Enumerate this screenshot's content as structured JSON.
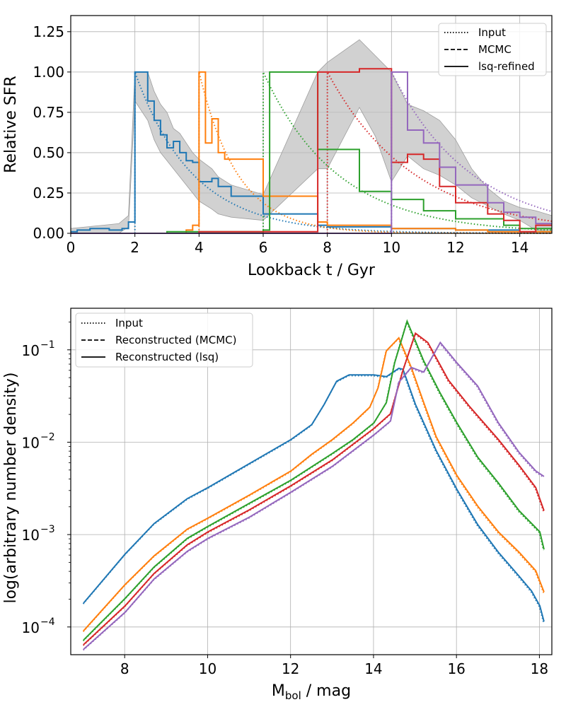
{
  "colors": [
    "#1f77b4",
    "#ff7f0e",
    "#2ca02c",
    "#d62728",
    "#9467bd"
  ],
  "chart_data": [
    {
      "type": "line",
      "xlabel": "Lookback t / Gyr",
      "ylabel": "Relative SFR",
      "xlim": [
        0,
        15
      ],
      "ylim": [
        0,
        1.35
      ],
      "xticks": [
        "0",
        "2",
        "4",
        "6",
        "8",
        "10",
        "12",
        "14"
      ],
      "yticks": [
        "0.00",
        "0.25",
        "0.50",
        "0.75",
        "1.00",
        "1.25"
      ],
      "grid": true,
      "legend": {
        "placement": "top-right",
        "entries": [
          {
            "label": "Input",
            "style": "dotted"
          },
          {
            "label": "MCMC",
            "style": "dashed"
          },
          {
            "label": "lsq-refined",
            "style": "solid"
          }
        ]
      },
      "input_series": [
        {
          "start": 2,
          "tau": 1.8
        },
        {
          "start": 4,
          "tau": 1.2
        },
        {
          "start": 6,
          "tau": 2.3
        },
        {
          "start": 8,
          "tau": 2.7
        },
        {
          "start": 10,
          "tau": 2.5
        }
      ],
      "uncertainty_band": [
        [
          0,
          0.0,
          0.03
        ],
        [
          0.5,
          0.0,
          0.04
        ],
        [
          1.0,
          0.0,
          0.05
        ],
        [
          1.5,
          0.0,
          0.06
        ],
        [
          1.8,
          0.04,
          0.11
        ],
        [
          2.0,
          0.82,
          1.0
        ],
        [
          2.4,
          0.7,
          1.0
        ],
        [
          2.6,
          0.58,
          0.88
        ],
        [
          2.8,
          0.5,
          0.8
        ],
        [
          3.0,
          0.45,
          0.75
        ],
        [
          3.2,
          0.4,
          0.65
        ],
        [
          3.4,
          0.35,
          0.62
        ],
        [
          3.6,
          0.3,
          0.56
        ],
        [
          3.8,
          0.25,
          0.5
        ],
        [
          4.0,
          0.2,
          0.46
        ],
        [
          4.4,
          0.15,
          0.4
        ],
        [
          4.6,
          0.12,
          0.35
        ],
        [
          5.0,
          0.1,
          0.3
        ],
        [
          6.0,
          0.08,
          0.24
        ],
        [
          7.7,
          0.4,
          1.0
        ],
        [
          8.0,
          0.4,
          1.06
        ],
        [
          9.0,
          0.78,
          1.2
        ],
        [
          9.5,
          0.6,
          1.1
        ],
        [
          10.0,
          0.32,
          1.0
        ],
        [
          10.5,
          0.48,
          0.8
        ],
        [
          11.0,
          0.4,
          0.76
        ],
        [
          11.5,
          0.36,
          0.7
        ],
        [
          12.0,
          0.3,
          0.58
        ],
        [
          12.5,
          0.22,
          0.4
        ],
        [
          13.0,
          0.17,
          0.28
        ],
        [
          13.5,
          0.12,
          0.2
        ],
        [
          14.0,
          0.08,
          0.16
        ],
        [
          14.5,
          0.02,
          0.14
        ],
        [
          15.0,
          0.01,
          0.11
        ]
      ],
      "step_series": [
        {
          "edges": [
            0,
            0.2,
            0.4,
            0.6,
            0.8,
            1.0,
            1.2,
            1.4,
            1.6,
            1.8,
            2.0,
            2.4,
            2.6,
            2.8,
            3.0,
            3.2,
            3.4,
            3.6,
            3.8,
            4.0,
            4.4,
            4.6,
            5.0,
            6.0,
            7.7,
            8.0,
            9.0,
            10.0,
            11.0,
            12.0,
            13.0,
            14.0,
            15.0
          ],
          "values": [
            0.01,
            0.02,
            0.02,
            0.03,
            0.03,
            0.03,
            0.02,
            0.02,
            0.03,
            0.07,
            1.0,
            0.82,
            0.7,
            0.61,
            0.53,
            0.57,
            0.5,
            0.45,
            0.44,
            0.32,
            0.34,
            0.29,
            0.23,
            0.12,
            0.05,
            0.04,
            0.04,
            0.03,
            0.03,
            0.02,
            0.02,
            0.01
          ]
        },
        {
          "edges": [
            0,
            3.6,
            3.8,
            4.0,
            4.2,
            4.4,
            4.6,
            4.8,
            6.0,
            7.7,
            8.0,
            10.0,
            12.0,
            13.0,
            15.0
          ],
          "values": [
            0.0,
            0.02,
            0.05,
            1.0,
            0.56,
            0.71,
            0.5,
            0.46,
            0.23,
            0.07,
            0.05,
            0.03,
            0.02,
            0.01
          ]
        },
        {
          "edges": [
            0,
            3.0,
            6.0,
            6.2,
            7.7,
            8.0,
            9.0,
            10.0,
            11.0,
            12.0,
            13.5,
            14.0,
            15.0
          ],
          "values": [
            0.0,
            0.01,
            0.02,
            1.0,
            0.52,
            0.52,
            0.26,
            0.21,
            0.14,
            0.09,
            0.05,
            0.03
          ]
        },
        {
          "edges": [
            0,
            4.0,
            7.7,
            8.0,
            9.0,
            10.0,
            10.5,
            11.0,
            11.5,
            12.0,
            13.0,
            13.5,
            14.0,
            14.5,
            15.0
          ],
          "values": [
            0.0,
            0.01,
            1.0,
            1.0,
            1.02,
            0.44,
            0.49,
            0.46,
            0.29,
            0.19,
            0.12,
            0.08,
            0.01,
            0.05
          ]
        },
        {
          "edges": [
            0,
            10.0,
            10.5,
            11.0,
            11.5,
            12.0,
            13.0,
            13.5,
            14.0,
            14.5,
            15.0
          ],
          "values": [
            0.0,
            1.0,
            0.64,
            0.56,
            0.41,
            0.3,
            0.19,
            0.13,
            0.1,
            0.06
          ]
        }
      ]
    },
    {
      "type": "line",
      "xlabel": "M",
      "xlabel_sub": "bol",
      "xlabel_tail": " / mag",
      "ylabel": "log(arbitrary number density)",
      "xlim": [
        6.7,
        18.3
      ],
      "yscale": "log",
      "ylim_log10": [
        -4.3,
        -0.55
      ],
      "xticks": [
        8,
        10,
        12,
        14,
        16,
        18
      ],
      "yticks": [
        {
          "base": "10",
          "exp": "−1",
          "value": -1
        },
        {
          "base": "10",
          "exp": "−2",
          "value": -2
        },
        {
          "base": "10",
          "exp": "−3",
          "value": -3
        },
        {
          "base": "10",
          "exp": "−4",
          "value": -4
        }
      ],
      "grid": true,
      "legend": {
        "placement": "top-left",
        "entries": [
          {
            "label": "Input",
            "style": "dotted"
          },
          {
            "label": "Reconstructed (MCMC)",
            "style": "dashed"
          },
          {
            "label": "Reconstructed (lsq)",
            "style": "solid"
          }
        ]
      },
      "series": [
        {
          "points": [
            [
              7.0,
              -3.75
            ],
            [
              8.0,
              -3.22
            ],
            [
              8.7,
              -2.89
            ],
            [
              9.5,
              -2.62
            ],
            [
              10.0,
              -2.5
            ],
            [
              11.0,
              -2.24
            ],
            [
              12.0,
              -1.98
            ],
            [
              12.5,
              -1.82
            ],
            [
              12.8,
              -1.6
            ],
            [
              13.1,
              -1.35
            ],
            [
              13.4,
              -1.28
            ],
            [
              14.0,
              -1.28
            ],
            [
              14.3,
              -1.3
            ],
            [
              14.6,
              -1.21
            ],
            [
              14.7,
              -1.22
            ],
            [
              15.0,
              -1.6
            ],
            [
              15.5,
              -2.1
            ],
            [
              16.0,
              -2.52
            ],
            [
              16.5,
              -2.9
            ],
            [
              17.0,
              -3.2
            ],
            [
              17.5,
              -3.46
            ],
            [
              17.8,
              -3.62
            ],
            [
              18.0,
              -3.78
            ],
            [
              18.1,
              -3.95
            ]
          ]
        },
        {
          "points": [
            [
              7.0,
              -4.05
            ],
            [
              8.0,
              -3.55
            ],
            [
              8.7,
              -3.24
            ],
            [
              9.5,
              -2.95
            ],
            [
              10.0,
              -2.83
            ],
            [
              11.0,
              -2.58
            ],
            [
              12.0,
              -2.32
            ],
            [
              12.5,
              -2.14
            ],
            [
              13.0,
              -1.98
            ],
            [
              13.5,
              -1.8
            ],
            [
              13.9,
              -1.63
            ],
            [
              14.1,
              -1.42
            ],
            [
              14.3,
              -1.02
            ],
            [
              14.6,
              -0.88
            ],
            [
              14.9,
              -1.2
            ],
            [
              15.2,
              -1.58
            ],
            [
              15.5,
              -1.95
            ],
            [
              16.0,
              -2.37
            ],
            [
              16.5,
              -2.7
            ],
            [
              17.0,
              -2.98
            ],
            [
              17.5,
              -3.2
            ],
            [
              17.9,
              -3.4
            ],
            [
              18.1,
              -3.63
            ]
          ]
        },
        {
          "points": [
            [
              7.0,
              -4.15
            ],
            [
              8.0,
              -3.7
            ],
            [
              8.7,
              -3.36
            ],
            [
              9.5,
              -3.05
            ],
            [
              10.0,
              -2.92
            ],
            [
              11.0,
              -2.67
            ],
            [
              12.0,
              -2.42
            ],
            [
              13.0,
              -2.13
            ],
            [
              13.5,
              -1.98
            ],
            [
              14.0,
              -1.8
            ],
            [
              14.3,
              -1.58
            ],
            [
              14.5,
              -1.15
            ],
            [
              14.8,
              -0.7
            ],
            [
              15.2,
              -1.13
            ],
            [
              15.6,
              -1.48
            ],
            [
              16.0,
              -1.8
            ],
            [
              16.5,
              -2.17
            ],
            [
              17.0,
              -2.45
            ],
            [
              17.5,
              -2.75
            ],
            [
              18.0,
              -2.98
            ],
            [
              18.1,
              -3.17
            ]
          ]
        },
        {
          "points": [
            [
              7.0,
              -4.2
            ],
            [
              8.0,
              -3.78
            ],
            [
              8.7,
              -3.43
            ],
            [
              9.5,
              -3.12
            ],
            [
              10.0,
              -2.98
            ],
            [
              11.0,
              -2.74
            ],
            [
              12.0,
              -2.48
            ],
            [
              13.0,
              -2.2
            ],
            [
              14.0,
              -1.86
            ],
            [
              14.4,
              -1.7
            ],
            [
              14.7,
              -1.23
            ],
            [
              15.0,
              -0.83
            ],
            [
              15.3,
              -0.93
            ],
            [
              15.8,
              -1.34
            ],
            [
              16.3,
              -1.62
            ],
            [
              17.0,
              -1.98
            ],
            [
              17.5,
              -2.26
            ],
            [
              17.9,
              -2.5
            ],
            [
              18.1,
              -2.75
            ]
          ]
        },
        {
          "points": [
            [
              7.0,
              -4.25
            ],
            [
              8.0,
              -3.85
            ],
            [
              8.7,
              -3.49
            ],
            [
              9.5,
              -3.19
            ],
            [
              10.0,
              -3.05
            ],
            [
              11.0,
              -2.82
            ],
            [
              12.0,
              -2.55
            ],
            [
              13.0,
              -2.27
            ],
            [
              14.0,
              -1.93
            ],
            [
              14.4,
              -1.78
            ],
            [
              14.6,
              -1.36
            ],
            [
              14.9,
              -1.2
            ],
            [
              15.2,
              -1.25
            ],
            [
              15.6,
              -0.93
            ],
            [
              16.0,
              -1.15
            ],
            [
              16.5,
              -1.4
            ],
            [
              17.0,
              -1.8
            ],
            [
              17.5,
              -2.12
            ],
            [
              17.9,
              -2.32
            ],
            [
              18.1,
              -2.38
            ]
          ]
        }
      ]
    }
  ]
}
